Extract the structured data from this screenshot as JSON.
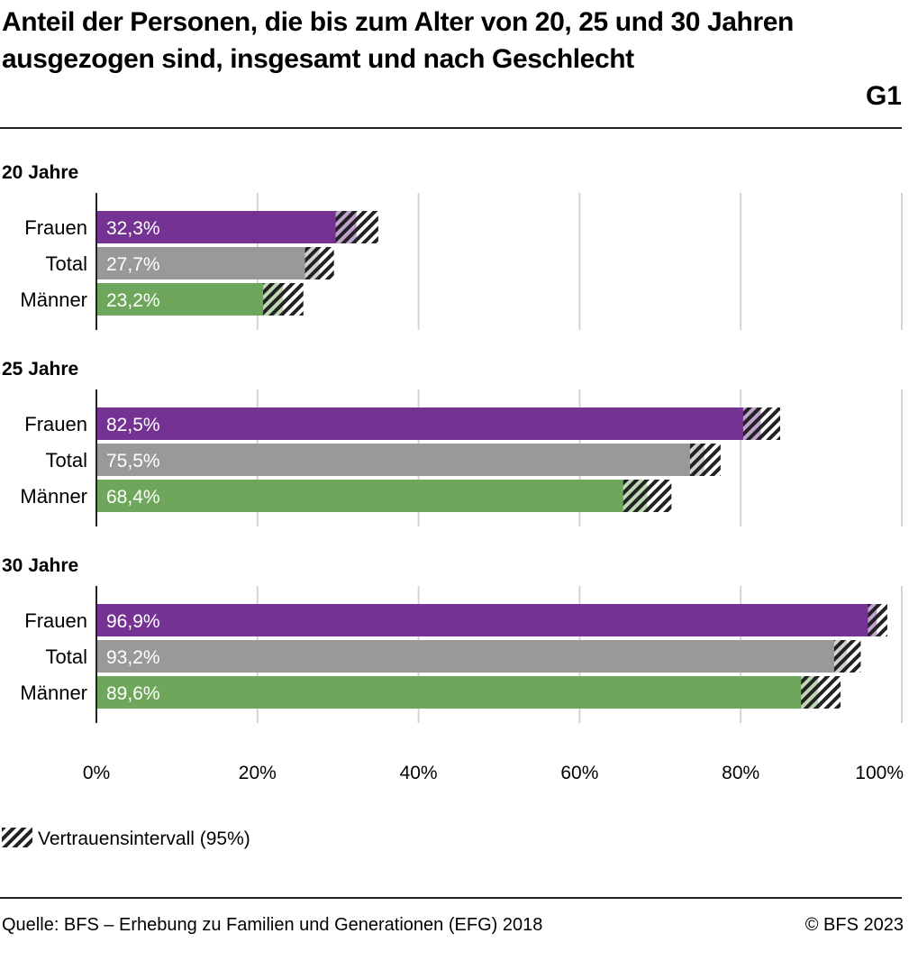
{
  "header": {
    "title": "Anteil der Personen, die bis zum Alter von 20, 25 und 30 Jahren ausgezogen sind, insgesamt und nach Geschlecht",
    "code": "G1"
  },
  "chart_data": {
    "type": "bar",
    "orientation": "horizontal",
    "xlim": [
      0,
      100
    ],
    "x_ticks": [
      "0%",
      "20%",
      "40%",
      "60%",
      "80%",
      "100%"
    ],
    "grid": true,
    "panels": [
      {
        "title": "20 Jahre",
        "categories": [
          "Frauen",
          "Total",
          "Männer"
        ],
        "values": [
          32.3,
          27.7,
          23.2
        ],
        "labels": [
          "32,3%",
          "27,7%",
          "23,2%"
        ],
        "ci": [
          [
            29.7,
            35.0
          ],
          [
            25.9,
            29.5
          ],
          [
            20.7,
            25.7
          ]
        ]
      },
      {
        "title": "25 Jahre",
        "categories": [
          "Frauen",
          "Total",
          "Männer"
        ],
        "values": [
          82.5,
          75.5,
          68.4
        ],
        "labels": [
          "82,5%",
          "75,5%",
          "68,4%"
        ],
        "ci": [
          [
            80.3,
            84.9
          ],
          [
            73.7,
            77.5
          ],
          [
            65.4,
            71.4
          ]
        ]
      },
      {
        "title": "30 Jahre",
        "categories": [
          "Frauen",
          "Total",
          "Männer"
        ],
        "values": [
          96.9,
          93.2,
          89.6
        ],
        "labels": [
          "96,9%",
          "93,2%",
          "89,6%"
        ],
        "ci": [
          [
            95.8,
            98.2
          ],
          [
            91.6,
            94.9
          ],
          [
            87.5,
            92.4
          ]
        ]
      }
    ],
    "series_colors": {
      "Frauen": "#743393",
      "Total": "#999999",
      "Männer": "#6ea75b"
    },
    "legend": {
      "label": "Vertrauensintervall (95%)",
      "position": "bottom-left"
    }
  },
  "footer": {
    "source": "Quelle: BFS – Erhebung zu Familien und Generationen (EFG) 2018",
    "copyright": "© BFS 2023"
  }
}
